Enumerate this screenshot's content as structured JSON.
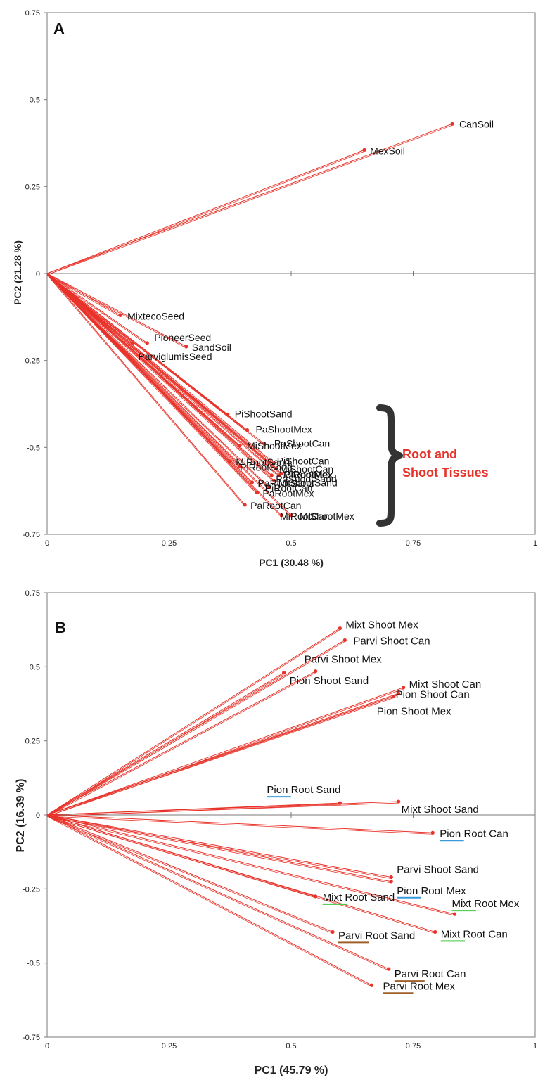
{
  "colors": {
    "series": "#e8332a",
    "axis": "#7a7a7a",
    "underline_pion": "#3a9ad9",
    "underline_mixt": "#3ec93e",
    "underline_parvi": "#a0602a"
  },
  "chart_data": [
    {
      "panel": "A",
      "type": "scatter",
      "style": "vectors-from-origin",
      "xlabel": "PC1 (30.48 %)",
      "ylabel": "PC2  (21.28 %)",
      "xlim": [
        0,
        1
      ],
      "ylim": [
        -0.75,
        0.75
      ],
      "xticks": [
        "0",
        "0.25",
        "0.5",
        "0.75",
        "1"
      ],
      "yticks": [
        "0.75",
        "0.5",
        "0.25",
        "0",
        "-0.25",
        "-0.5",
        "-0.75"
      ],
      "grid": false,
      "annotation": "Root and Shoot Tissues",
      "points": [
        {
          "label": "CanSoil",
          "x": 0.83,
          "y": 0.43
        },
        {
          "label": "MexSoil",
          "x": 0.65,
          "y": 0.355
        },
        {
          "label": "MixtecoSeed",
          "x": 0.15,
          "y": -0.12
        },
        {
          "label": "PioneerSeed",
          "x": 0.205,
          "y": -0.2
        },
        {
          "label": "SandSoil",
          "x": 0.285,
          "y": -0.21
        },
        {
          "label": "ParviglumisSeed",
          "x": 0.175,
          "y": -0.2
        },
        {
          "label": "PiShootSand",
          "x": 0.37,
          "y": -0.405
        },
        {
          "label": "PaShootMex",
          "x": 0.41,
          "y": -0.45
        },
        {
          "label": "PaShootCan",
          "x": 0.445,
          "y": -0.49
        },
        {
          "label": "MiShootMex",
          "x": 0.395,
          "y": -0.495
        },
        {
          "label": "MiRootSand",
          "x": 0.375,
          "y": -0.54
        },
        {
          "label": "PiShootCan",
          "x": 0.465,
          "y": -0.545
        },
        {
          "label": "PiRootSand",
          "x": 0.395,
          "y": -0.555
        },
        {
          "label": "MiShootCan",
          "x": 0.47,
          "y": -0.56
        },
        {
          "label": "PiRootMex",
          "x": 0.48,
          "y": -0.575
        },
        {
          "label": "MiRootMex",
          "x": 0.475,
          "y": -0.58
        },
        {
          "label": "PaShootSand",
          "x": 0.46,
          "y": -0.58
        },
        {
          "label": "MiShootSand",
          "x": 0.465,
          "y": -0.595
        },
        {
          "label": "PaRootSand",
          "x": 0.42,
          "y": -0.6
        },
        {
          "label": "PiRootCan",
          "x": 0.455,
          "y": -0.615
        },
        {
          "label": "PaRootMex",
          "x": 0.43,
          "y": -0.63
        },
        {
          "label": "PaRootCan",
          "x": 0.405,
          "y": -0.665
        },
        {
          "label": "MiRootCan",
          "x": 0.48,
          "y": -0.695
        },
        {
          "label": "MiShootMex",
          "x": 0.5,
          "y": -0.695
        }
      ]
    },
    {
      "panel": "B",
      "type": "scatter",
      "style": "vectors-from-origin",
      "xlabel": "PC1 (45.79 %)",
      "ylabel": "PC2 (16.39 %)",
      "xlim": [
        0,
        1
      ],
      "ylim": [
        -0.75,
        0.75
      ],
      "xticks": [
        "0",
        "0.25",
        "0.5",
        "0.75",
        "1"
      ],
      "yticks": [
        "0.75",
        "0.5",
        "0.25",
        "0",
        "-0.25",
        "-0.5",
        "-0.75"
      ],
      "grid": false,
      "points": [
        {
          "label": "Mixt Shoot Mex",
          "x": 0.6,
          "y": 0.63
        },
        {
          "label": "Parvi Shoot Can",
          "x": 0.61,
          "y": 0.59
        },
        {
          "label": "Parvi Shoot Mex",
          "x": 0.55,
          "y": 0.485
        },
        {
          "label": "Pion Shoot Sand",
          "x": 0.485,
          "y": 0.48
        },
        {
          "label": "Mixt Shoot Can",
          "x": 0.73,
          "y": 0.43
        },
        {
          "label": "Pion Shoot Can",
          "x": 0.72,
          "y": 0.41
        },
        {
          "label": "Pion Shoot Mex",
          "x": 0.71,
          "y": 0.4
        },
        {
          "label": "Pion Root Sand",
          "x": 0.6,
          "y": 0.04
        },
        {
          "label": "Mixt Shoot Sand",
          "x": 0.72,
          "y": 0.045
        },
        {
          "label": "Pion Root Can",
          "x": 0.79,
          "y": -0.06
        },
        {
          "label": "Parvi Shoot Sand",
          "x": 0.705,
          "y": -0.21
        },
        {
          "label": "Pion Root Mex",
          "x": 0.705,
          "y": -0.225
        },
        {
          "label": "Mixt Root Sand",
          "x": 0.55,
          "y": -0.275
        },
        {
          "label": "Mixt Root Mex",
          "x": 0.835,
          "y": -0.335
        },
        {
          "label": "Parvi Root Sand",
          "x": 0.585,
          "y": -0.395
        },
        {
          "label": "Mixt Root Can",
          "x": 0.795,
          "y": -0.395
        },
        {
          "label": "Parvi Root Can",
          "x": 0.7,
          "y": -0.52
        },
        {
          "label": "Parvi Root Mex",
          "x": 0.665,
          "y": -0.575
        }
      ]
    }
  ]
}
